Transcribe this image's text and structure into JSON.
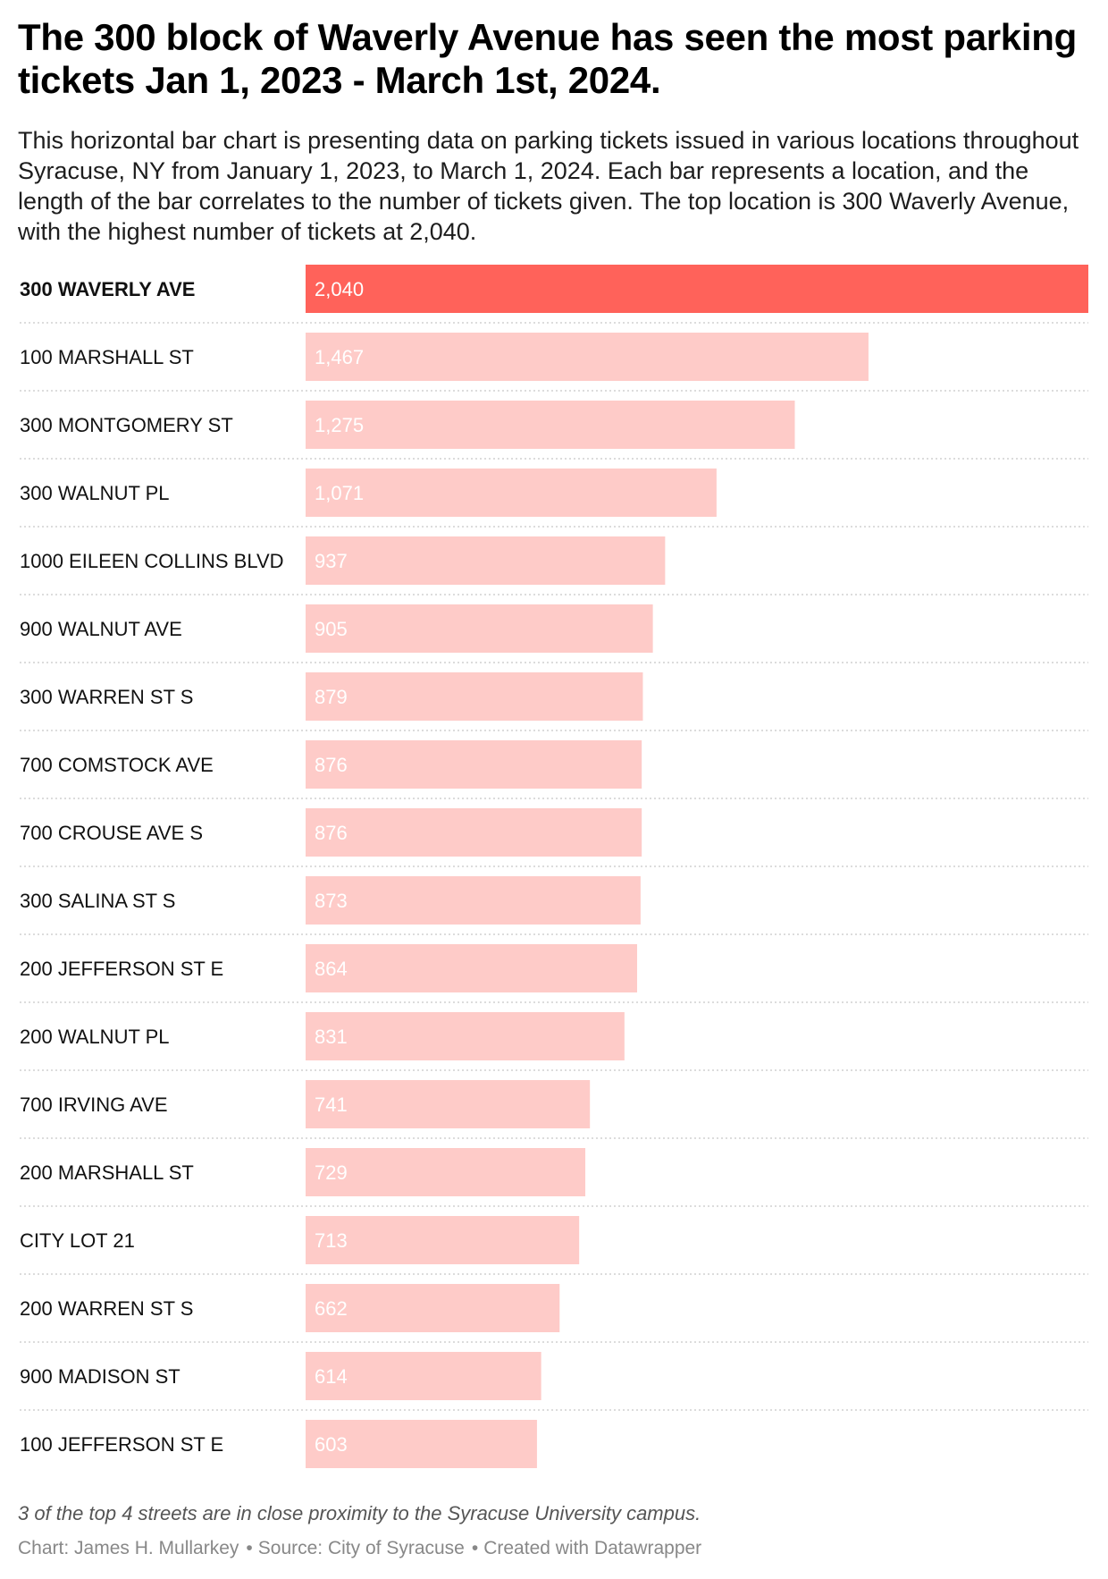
{
  "title": "The 300 block of Waverly Avenue has seen the most parking tickets Jan 1, 2023 - March 1st, 2024.",
  "description": "This horizontal bar chart is presenting data on parking tickets issued in various locations throughout Syracuse, NY from January 1, 2023, to March 1, 2024. Each bar represents a location, and the length of the bar correlates to the number of tickets given. The top location is 300 Waverly Avenue, with the highest number of tickets at 2,040.",
  "note": "3 of the top 4 streets are in close proximity to the Syracuse University campus.",
  "footer": {
    "chart_credit": "Chart: James H. Mullarkey",
    "source": "Source: City of Syracuse",
    "created_with": "Created with Datawrapper"
  },
  "colors": {
    "highlight": "#ff625a",
    "default_bar": "#fecbc8",
    "separator": "#c8c8c8"
  },
  "chart_data": {
    "type": "bar",
    "orientation": "horizontal",
    "categories": [
      "300 WAVERLY AVE",
      "100 MARSHALL ST",
      "300 MONTGOMERY ST",
      "300 WALNUT PL",
      "1000 EILEEN COLLINS BLVD",
      "900 WALNUT AVE",
      "300 WARREN ST S",
      "700 COMSTOCK AVE",
      "700 CROUSE AVE S",
      "300 SALINA ST S",
      "200 JEFFERSON ST E",
      "200 WALNUT PL",
      "700 IRVING AVE",
      "200 MARSHALL ST",
      "CITY LOT 21",
      "200 WARREN ST S",
      "900 MADISON ST",
      "100 JEFFERSON ST E"
    ],
    "values": [
      2040,
      1467,
      1275,
      1071,
      937,
      905,
      879,
      876,
      876,
      873,
      864,
      831,
      741,
      729,
      713,
      662,
      614,
      603
    ],
    "value_labels": [
      "2,040",
      "1,467",
      "1,275",
      "1,071",
      "937",
      "905",
      "879",
      "876",
      "876",
      "873",
      "864",
      "831",
      "741",
      "729",
      "713",
      "662",
      "614",
      "603"
    ],
    "highlighted": [
      "300 WAVERLY AVE"
    ],
    "xlim": [
      0,
      2040
    ],
    "grid": false
  }
}
